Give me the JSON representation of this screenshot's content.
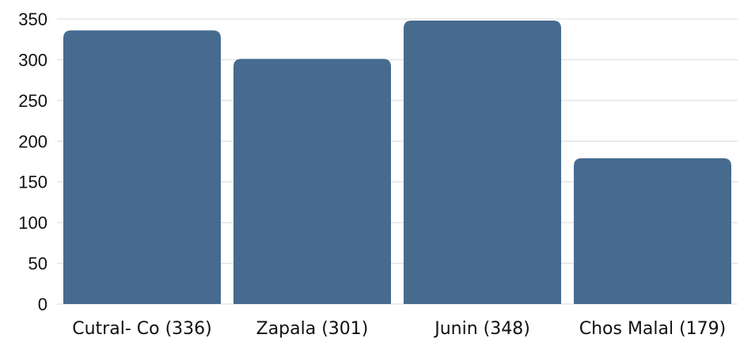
{
  "chart_data": {
    "type": "bar",
    "categories": [
      "Cutral- Co (336)",
      "Zapala (301)",
      "Junin (348)",
      "Chos Malal (179)"
    ],
    "values": [
      336,
      301,
      348,
      179
    ],
    "ylim": [
      0,
      350
    ],
    "yticks": [
      0,
      50,
      100,
      150,
      200,
      250,
      300,
      350
    ],
    "bar_color": "#466b8f",
    "grid": true,
    "legend": "none"
  }
}
